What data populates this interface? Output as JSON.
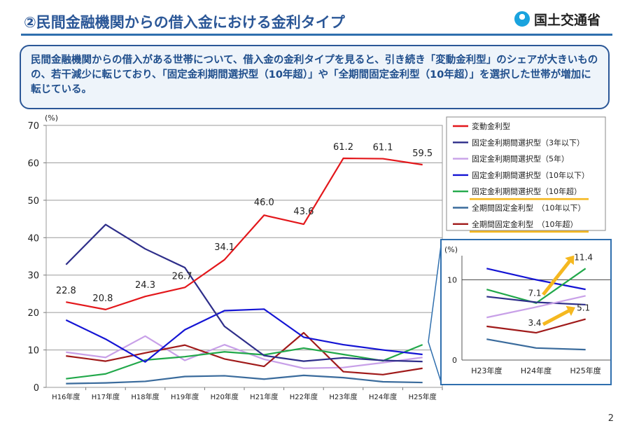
{
  "header": {
    "title": "②民間金融機関からの借入金における金利タイプ",
    "logo_text": "国土交通省"
  },
  "summary": {
    "text": "民間金融機関からの借入がある世帯について、借入金の金利タイプを見ると、引き続き「変動金利型」のシェアが大きいものの、若干減少に転じており、「固定金利期間選択型（10年超）」や「全期間固定金利型（10年超）」を選択した世帯が増加に転じている。"
  },
  "page_number": "2",
  "chart_data": [
    {
      "type": "line",
      "ylabel": "(%)",
      "ylim": [
        0,
        70
      ],
      "yticks": [
        0,
        10,
        20,
        30,
        40,
        50,
        60,
        70
      ],
      "grid": true,
      "legend_position": "top-right",
      "categories": [
        "H16年度",
        "H17年度",
        "H18年度",
        "H19年度",
        "H20年度",
        "H21年度",
        "H22年度",
        "H23年度",
        "H24年度",
        "H25年度"
      ],
      "series": [
        {
          "name": "変動金利型",
          "color": "#e3171b",
          "values": [
            22.8,
            20.8,
            24.3,
            26.7,
            34.1,
            46.0,
            43.6,
            61.2,
            61.1,
            59.5
          ],
          "labels": [
            "22.8",
            "20.8",
            "24.3",
            "26.7",
            "34.1",
            "46.0",
            "43.6",
            "61.2",
            "61.1",
            "59.5"
          ],
          "highlight": false
        },
        {
          "name": "固定金利期間選択型（3年以下）",
          "color": "#2e2e8a",
          "values": [
            32.8,
            43.5,
            37.0,
            32.0,
            16.3,
            8.5,
            7.0,
            7.9,
            7.2,
            6.9
          ],
          "highlight": false
        },
        {
          "name": "固定金利期間選択型（5年）",
          "color": "#c8a0e8",
          "values": [
            9.4,
            8.0,
            13.7,
            7.2,
            11.4,
            7.5,
            5.1,
            5.3,
            6.6,
            8.0
          ],
          "highlight": false
        },
        {
          "name": "固定金利期間選択型（10年以下）",
          "color": "#1414d4",
          "values": [
            18.0,
            12.9,
            6.8,
            15.4,
            20.5,
            20.9,
            13.4,
            11.4,
            10.0,
            8.8
          ],
          "highlight": false
        },
        {
          "name": "固定金利期間選択型（10年超）",
          "color": "#21a84a",
          "values": [
            2.3,
            3.6,
            7.3,
            8.2,
            9.5,
            8.7,
            10.5,
            8.8,
            7.1,
            11.4
          ],
          "highlight": true
        },
        {
          "name": "全期間固定金利型　（10年以下）",
          "color": "#3a6b9c",
          "values": [
            1.0,
            1.2,
            1.6,
            2.9,
            3.1,
            2.2,
            3.2,
            2.6,
            1.5,
            1.3
          ],
          "highlight": false
        },
        {
          "name": "全期間固定金利型　（10年超）",
          "color": "#a01a1a",
          "values": [
            8.4,
            7.0,
            9.2,
            11.3,
            7.6,
            5.6,
            14.6,
            4.2,
            3.4,
            5.1
          ],
          "highlight": true
        }
      ]
    },
    {
      "type": "line",
      "ylabel": "(%)",
      "ylim": [
        0,
        13
      ],
      "yticks": [
        0,
        10
      ],
      "categories": [
        "H23年度",
        "H24年度",
        "H25年度"
      ],
      "annotations": [
        {
          "series": "固定金利期間選択型（10年超）",
          "labels": [
            "7.1",
            "11.4"
          ]
        },
        {
          "series": "全期間固定金利型　（10年超）",
          "labels": [
            "3.4",
            "5.1"
          ]
        }
      ],
      "series": [
        {
          "name": "固定金利期間選択型（10年以下）",
          "color": "#1414d4",
          "values": [
            11.4,
            10.0,
            8.8
          ]
        },
        {
          "name": "固定金利期間選択型（10年超）",
          "color": "#21a84a",
          "values": [
            8.8,
            7.1,
            11.4
          ]
        },
        {
          "name": "固定金利期間選択型（3年以下）",
          "color": "#2e2e8a",
          "values": [
            7.9,
            7.2,
            6.9
          ]
        },
        {
          "name": "固定金利期間選択型（5年）",
          "color": "#c8a0e8",
          "values": [
            5.3,
            6.6,
            8.0
          ]
        },
        {
          "name": "全期間固定金利型　（10年超）",
          "color": "#a01a1a",
          "values": [
            4.2,
            3.4,
            5.1
          ]
        },
        {
          "name": "全期間固定金利型　（10年以下）",
          "color": "#3a6b9c",
          "values": [
            2.6,
            1.5,
            1.3
          ]
        }
      ]
    }
  ]
}
